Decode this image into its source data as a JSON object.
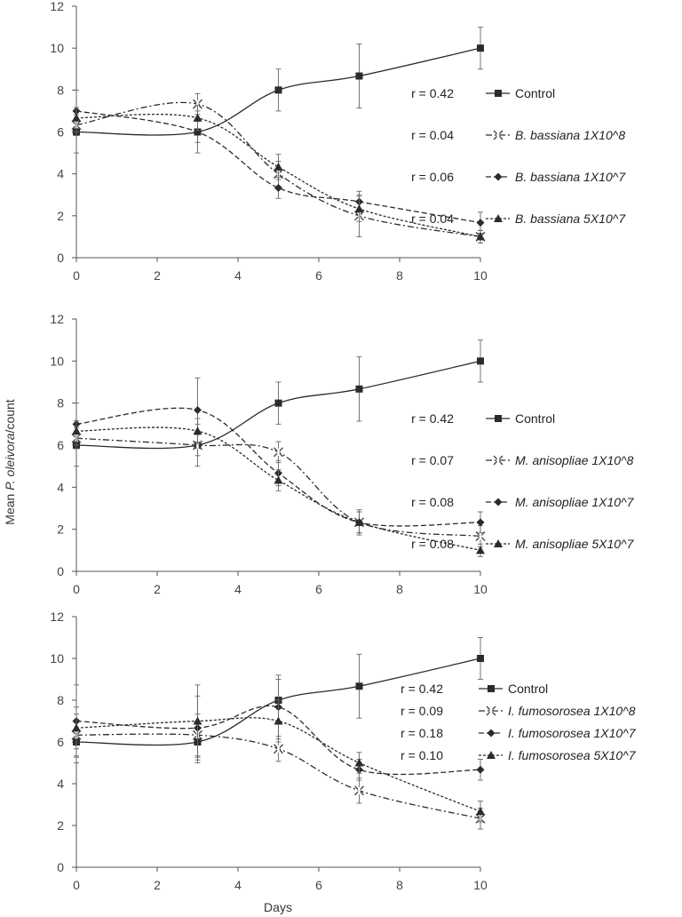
{
  "figure": {
    "ylabel_prefix": "Mean ",
    "ylabel_species": "P. oleivora",
    "ylabel_suffix": "/count",
    "xlabel": "Days"
  },
  "chart_data": [
    {
      "type": "line",
      "x": [
        0,
        3,
        5,
        7,
        10
      ],
      "xlim": [
        0,
        10
      ],
      "ylim": [
        0,
        12
      ],
      "xticks": [
        0,
        2,
        4,
        6,
        8,
        10
      ],
      "yticks": [
        0,
        2,
        4,
        6,
        8,
        10,
        12
      ],
      "legend_position": "right",
      "series": [
        {
          "name": "Control",
          "r": "r = 0.42",
          "style": "solid",
          "marker": "square",
          "italic": false,
          "values": [
            6.0,
            6.0,
            8.0,
            8.67,
            10.0
          ],
          "errors": [
            1.0,
            1.0,
            1.0,
            1.53,
            1.0
          ]
        },
        {
          "name": "B. bassiana 1X10^8",
          "r": "r = 0.04",
          "style": "dashdot",
          "marker": "x",
          "italic": true,
          "values": [
            6.33,
            7.33,
            4.0,
            2.0,
            1.0
          ],
          "errors": [
            0.5,
            0.5,
            0.6,
            1.0,
            0.3
          ]
        },
        {
          "name": "B. bassiana 1X10^7",
          "r": "r = 0.06",
          "style": "dash",
          "marker": "diamond",
          "italic": true,
          "values": [
            7.0,
            6.0,
            3.33,
            2.67,
            1.67
          ],
          "errors": [
            1.0,
            0.5,
            0.5,
            0.5,
            0.5
          ]
        },
        {
          "name": "B. bassiana 5X10^7",
          "r": "r = 0.04",
          "style": "dot",
          "marker": "triangle",
          "italic": true,
          "values": [
            6.67,
            6.67,
            4.33,
            2.33,
            1.0
          ],
          "errors": [
            0.5,
            0.6,
            0.6,
            0.6,
            0.3
          ]
        }
      ]
    },
    {
      "type": "line",
      "x": [
        0,
        3,
        5,
        7,
        10
      ],
      "xlim": [
        0,
        10
      ],
      "ylim": [
        0,
        12
      ],
      "xticks": [
        0,
        2,
        4,
        6,
        8,
        10
      ],
      "yticks": [
        0,
        2,
        4,
        6,
        8,
        10,
        12
      ],
      "legend_position": "right",
      "series": [
        {
          "name": "Control",
          "r": "r = 0.42",
          "style": "solid",
          "marker": "square",
          "italic": false,
          "values": [
            6.0,
            6.0,
            8.0,
            8.67,
            10.0
          ],
          "errors": [
            1.0,
            1.0,
            1.0,
            1.53,
            1.0
          ]
        },
        {
          "name": "M. anisopliae 1X10^8",
          "r": "r = 0.07",
          "style": "dashdot",
          "marker": "x",
          "italic": true,
          "values": [
            6.33,
            6.0,
            5.67,
            2.33,
            1.67
          ],
          "errors": [
            0.5,
            0.5,
            0.5,
            0.5,
            0.5
          ]
        },
        {
          "name": "M. anisopliae 1X10^7",
          "r": "r = 0.08",
          "style": "dash",
          "marker": "diamond",
          "italic": true,
          "values": [
            7.0,
            7.67,
            4.67,
            2.33,
            2.33
          ],
          "errors": [
            1.0,
            1.53,
            0.6,
            0.6,
            0.5
          ]
        },
        {
          "name": "M. anisopliae 5X10^7",
          "r": "r = 0.08",
          "style": "dot",
          "marker": "triangle",
          "italic": true,
          "values": [
            6.67,
            6.67,
            4.33,
            2.33,
            1.0
          ],
          "errors": [
            0.5,
            0.6,
            0.5,
            0.5,
            0.3
          ]
        }
      ]
    },
    {
      "type": "line",
      "x": [
        0,
        3,
        5,
        7,
        10
      ],
      "xlim": [
        0,
        10
      ],
      "ylim": [
        0,
        12
      ],
      "xticks": [
        0,
        2,
        4,
        6,
        8,
        10
      ],
      "yticks": [
        0,
        2,
        4,
        6,
        8,
        10,
        12
      ],
      "legend_position": "right",
      "series": [
        {
          "name": "Control",
          "r": "r = 0.42",
          "style": "solid",
          "marker": "square",
          "italic": false,
          "values": [
            6.0,
            6.0,
            8.0,
            8.67,
            10.0
          ],
          "errors": [
            1.0,
            1.0,
            1.0,
            1.53,
            1.0
          ]
        },
        {
          "name": "I. fumosorosea 1X10^8",
          "r": "r = 0.09",
          "style": "dashdot",
          "marker": "x",
          "italic": true,
          "values": [
            6.33,
            6.33,
            5.67,
            3.67,
            2.33
          ],
          "errors": [
            1.0,
            1.0,
            0.6,
            0.6,
            0.5
          ]
        },
        {
          "name": "I. fumosorosea 1X10^7",
          "r": "r = 0.18",
          "style": "dash",
          "marker": "diamond",
          "italic": true,
          "values": [
            7.0,
            6.67,
            7.67,
            4.67,
            4.67
          ],
          "errors": [
            1.73,
            1.53,
            1.53,
            0.5,
            0.5
          ]
        },
        {
          "name": "I. fumosorosea 5X10^7",
          "r": "r = 0.10",
          "style": "dot",
          "marker": "triangle",
          "italic": true,
          "values": [
            6.67,
            7.0,
            7.0,
            5.0,
            2.67
          ],
          "errors": [
            1.0,
            1.73,
            1.0,
            0.5,
            0.5
          ]
        }
      ]
    }
  ]
}
